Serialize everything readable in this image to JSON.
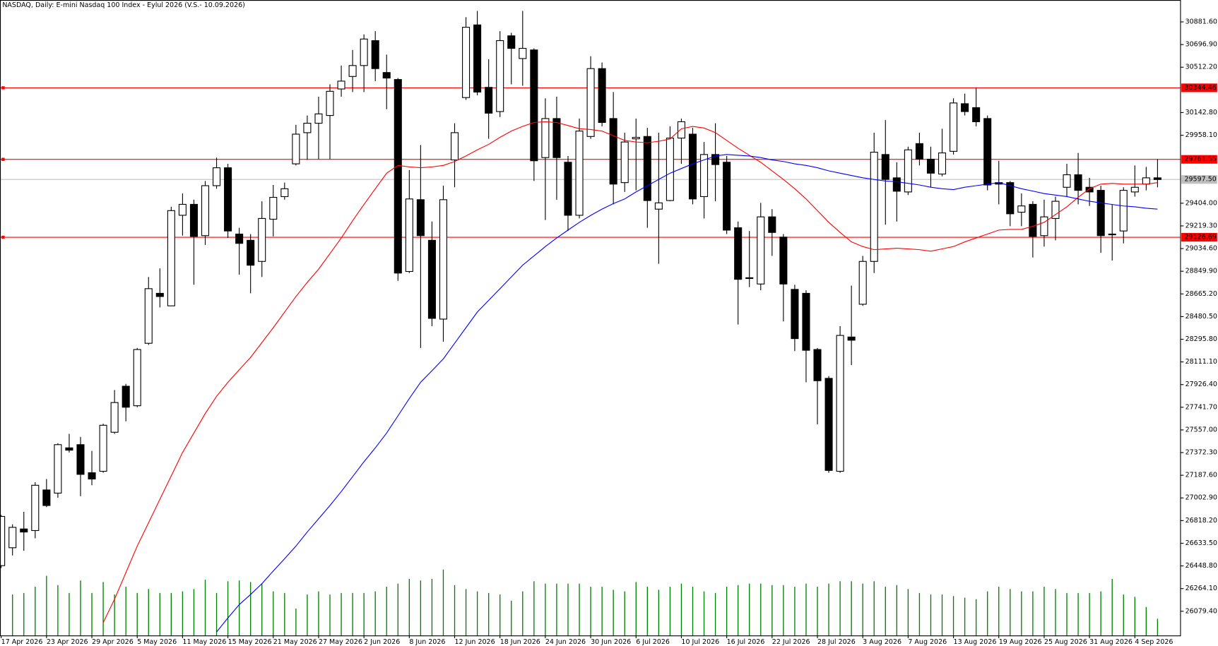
{
  "chart_data": {
    "type": "candlestick",
    "title": "NASDAQ, Daily:  E-mini Nasdaq 100 Index - Eylul 2026 (V.S.- 10.09.2026)",
    "categories": [
      "17 Apr 2026",
      null,
      null,
      null,
      "23 Apr 2026",
      null,
      null,
      null,
      "29 Apr 2026",
      null,
      null,
      null,
      "5 May 2026",
      null,
      null,
      null,
      "11 May 2026",
      null,
      null,
      null,
      "15 May 2026",
      null,
      null,
      null,
      "21 May 2026",
      null,
      null,
      null,
      "27 May 2026",
      null,
      null,
      null,
      "2 Jun 2026",
      null,
      null,
      null,
      "8 Jun 2026",
      null,
      null,
      null,
      "12 Jun 2026",
      null,
      null,
      null,
      "18 Jun 2026",
      null,
      null,
      null,
      "24 Jun 2026",
      null,
      null,
      null,
      "30 Jun 2026",
      null,
      null,
      null,
      "6 Jul 2026",
      null,
      null,
      null,
      "10 Jul 2026",
      null,
      null,
      null,
      "16 Jul 2026",
      null,
      null,
      null,
      "22 Jul 2026",
      null,
      null,
      null,
      "28 Jul 2026",
      null,
      null,
      null,
      "3 Aug 2026",
      null,
      null,
      null,
      "7 Aug 2026",
      null,
      null,
      null,
      "13 Aug 2026",
      null,
      null,
      null,
      "19 Aug 2026",
      null,
      null,
      null,
      "25 Aug 2026",
      null,
      null,
      null,
      "31 Aug 2026",
      null,
      null,
      null,
      "4 Sep 2026",
      null,
      null
    ],
    "open": [
      26451,
      26597,
      26750,
      26737,
      27068,
      27042,
      27411,
      27437,
      27208,
      27220,
      27538,
      27913,
      27754,
      28263,
      28670,
      28568,
      29306,
      29395,
      29140,
      29547,
      29693,
      29153,
      29102,
      28930,
      29274,
      29458,
      29725,
      29979,
      30056,
      30119,
      30335,
      30437,
      30526,
      30729,
      30469,
      30412,
      28848,
      29433,
      29102,
      28460,
      29757,
      30265,
      30857,
      30348,
      30151,
      30768,
      30583,
      30653,
      29776,
      30094,
      29738,
      29306,
      29948,
      30501,
      30094,
      29572,
      29929,
      29948,
      29356,
      29426,
      29935,
      29967,
      29458,
      29801,
      29738,
      29204,
      28797,
      28746,
      29293,
      29128,
      28702,
      28670,
      28212,
      27977,
      27220,
      28314,
      28581,
      28930,
      29801,
      29611,
      29496,
      29890,
      29763,
      29642,
      29827,
      30215,
      30183,
      30094,
      29572,
      29572,
      29331,
      29395,
      29140,
      29280,
      29534,
      29636,
      29534,
      29509,
      29153,
      29178,
      29496,
      29560,
      29611
    ],
    "high": [
      26864,
      26788,
      26890,
      27131,
      27157,
      27449,
      27525,
      27500,
      27386,
      27608,
      27882,
      27932,
      28225,
      28803,
      28873,
      29375,
      29484,
      29433,
      29585,
      29776,
      29725,
      29204,
      29153,
      29420,
      29553,
      29572,
      30043,
      30119,
      30272,
      30373,
      30526,
      30653,
      30780,
      30806,
      30615,
      30424,
      29674,
      29878,
      29255,
      29547,
      30056,
      30920,
      30971,
      30577,
      30806,
      30793,
      30971,
      30666,
      30259,
      30272,
      29789,
      30094,
      30602,
      30551,
      30310,
      29979,
      30094,
      30018,
      29979,
      30030,
      30094,
      30018,
      29903,
      30056,
      29789,
      29255,
      29178,
      29407,
      29356,
      29153,
      28740,
      28695,
      28225,
      27996,
      28403,
      28733,
      28975,
      29979,
      30081,
      29738,
      29865,
      29979,
      29865,
      30011,
      30259,
      30297,
      30348,
      30119,
      29750,
      29585,
      29484,
      29420,
      29433,
      29458,
      29725,
      29814,
      29611,
      29547,
      29395,
      29534,
      29712,
      29700,
      29763
    ],
    "low": [
      26432,
      26534,
      26572,
      26674,
      26928,
      27004,
      27373,
      27017,
      27106,
      27208,
      27525,
      27627,
      27742,
      28250,
      28555,
      28568,
      29140,
      28740,
      29064,
      29522,
      29121,
      28822,
      28670,
      28803,
      29134,
      29433,
      29712,
      29757,
      29763,
      29763,
      30272,
      30310,
      30310,
      30399,
      30170,
      28772,
      28835,
      28225,
      28403,
      28276,
      29534,
      30246,
      30284,
      29929,
      30106,
      30373,
      30361,
      29585,
      29267,
      29433,
      29178,
      29280,
      29929,
      30030,
      29395,
      29496,
      29509,
      29204,
      28911,
      29420,
      29725,
      29395,
      29280,
      29420,
      29153,
      28416,
      28721,
      28695,
      28975,
      28441,
      28199,
      27945,
      27602,
      27208,
      27208,
      28085,
      28568,
      28835,
      29229,
      29255,
      29471,
      29712,
      29534,
      29623,
      29801,
      30119,
      30030,
      29509,
      29395,
      29217,
      29217,
      28962,
      29051,
      29102,
      29458,
      29395,
      29382,
      29000,
      28937,
      29077,
      29458,
      29509,
      29534
    ],
    "close": [
      26852,
      26763,
      26725,
      27106,
      26941,
      27437,
      27392,
      27195,
      27157,
      27595,
      27780,
      27742,
      28212,
      28708,
      28644,
      29344,
      29395,
      29134,
      29547,
      29693,
      29178,
      29077,
      28899,
      29280,
      29452,
      29522,
      29967,
      30056,
      30132,
      30316,
      30399,
      30526,
      30742,
      30501,
      30424,
      28835,
      29439,
      29140,
      28466,
      29433,
      29979,
      30838,
      30310,
      30138,
      30729,
      30666,
      30666,
      29750,
      30094,
      29776,
      29306,
      29992,
      30501,
      30062,
      29560,
      29903,
      29941,
      29426,
      29407,
      29935,
      30068,
      29439,
      29801,
      29719,
      29185,
      28784,
      28791,
      29293,
      29166,
      28746,
      28301,
      28206,
      27958,
      27227,
      28327,
      28288,
      28930,
      29820,
      29598,
      29502,
      29839,
      29763,
      29649,
      29814,
      30221,
      30151,
      30068,
      29553,
      29560,
      29318,
      29382,
      29134,
      29293,
      29420,
      29636,
      29509,
      29496,
      29140,
      29147,
      29509,
      29534,
      29611,
      29597.5
    ],
    "volumes": [
      null,
      53,
      55,
      63,
      77,
      65,
      55,
      71,
      55,
      69,
      53,
      63,
      55,
      60,
      55,
      55,
      57,
      60,
      72,
      55,
      70,
      71,
      69,
      67,
      57,
      55,
      35,
      53,
      57,
      53,
      55,
      55,
      55,
      57,
      63,
      67,
      73,
      71,
      73,
      85,
      65,
      60,
      57,
      55,
      53,
      45,
      57,
      70,
      67,
      67,
      67,
      67,
      63,
      63,
      59,
      57,
      69,
      63,
      59,
      63,
      67,
      63,
      57,
      55,
      63,
      65,
      67,
      67,
      65,
      65,
      63,
      67,
      63,
      67,
      70,
      70,
      67,
      70,
      63,
      65,
      60,
      55,
      53,
      53,
      51,
      49,
      47,
      57,
      63,
      60,
      57,
      57,
      63,
      60,
      55,
      55,
      55,
      57,
      73,
      53,
      50,
      37,
      22
    ],
    "volume_lim": [
      0,
      120
    ],
    "volume_color": "#008000",
    "moving_averages": [
      {
        "color": "#ff0000",
        "values": [
          null,
          null,
          null,
          null,
          null,
          null,
          null,
          null,
          null,
          25987,
          26178,
          26394,
          26610,
          26801,
          26992,
          27182,
          27373,
          27532,
          27691,
          27831,
          27945,
          28047,
          28148,
          28269,
          28390,
          28517,
          28644,
          28759,
          28867,
          28994,
          29121,
          29261,
          29394,
          29522,
          29649,
          29712,
          29700,
          29693,
          29700,
          29712,
          29744,
          29789,
          29839,
          29884,
          29941,
          29992,
          30030,
          30062,
          30068,
          30062,
          30037,
          30011,
          30005,
          29992,
          29954,
          29916,
          29903,
          29897,
          29909,
          29928,
          30011,
          30030,
          30017,
          29979,
          29916,
          29852,
          29795,
          29738,
          29668,
          29598,
          29522,
          29439,
          29344,
          29248,
          29166,
          29089,
          29051,
          29026,
          29032,
          29038,
          29032,
          29026,
          29013,
          29032,
          29051,
          29089,
          29121,
          29153,
          29185,
          29191,
          29191,
          29216,
          29248,
          29312,
          29375,
          29452,
          29522,
          29560,
          29566,
          29560,
          29560,
          29560,
          29572
        ]
      },
      {
        "color": "#0000ff",
        "values": [
          null,
          null,
          null,
          null,
          null,
          null,
          null,
          null,
          null,
          null,
          null,
          null,
          null,
          null,
          null,
          null,
          null,
          null,
          null,
          25911,
          26025,
          26133,
          26216,
          26305,
          26407,
          26508,
          26610,
          26725,
          26833,
          26941,
          27055,
          27176,
          27297,
          27411,
          27532,
          27672,
          27812,
          27945,
          28040,
          28136,
          28263,
          28390,
          28517,
          28613,
          28708,
          28803,
          28899,
          28975,
          29051,
          29121,
          29185,
          29248,
          29305,
          29356,
          29401,
          29439,
          29496,
          29547,
          29598,
          29649,
          29687,
          29725,
          29757,
          29789,
          29801,
          29795,
          29789,
          29776,
          29757,
          29744,
          29725,
          29712,
          29693,
          29668,
          29649,
          29630,
          29611,
          29598,
          29585,
          29579,
          29566,
          29553,
          29534,
          29522,
          29515,
          29534,
          29547,
          29560,
          29572,
          29547,
          29522,
          29503,
          29483,
          29471,
          29458,
          29439,
          29420,
          29407,
          29394,
          29382,
          29375,
          29363,
          29356
        ]
      }
    ],
    "levels": [
      {
        "value": 30344.46,
        "label": "30344.46",
        "color": "#ff0000"
      },
      {
        "value": 29761.55,
        "label": "29761.55",
        "color": "#ff0000"
      },
      {
        "value": 29126.69,
        "label": "29126.69",
        "color": "#ff0000"
      }
    ],
    "bid": {
      "value": 29597.5,
      "label": "29597.50",
      "color": "#c0c0c0"
    },
    "ylim": [
      25879,
      31060
    ],
    "yticks": [
      {
        "value": 30881.6,
        "label": "30881.60"
      },
      {
        "value": 30696.9,
        "label": "30696.90"
      },
      {
        "value": 30512.2,
        "label": "30512.20"
      },
      {
        "value": 30142.8,
        "label": "30142.80"
      },
      {
        "value": 29958.1,
        "label": "29958.10"
      },
      {
        "value": 29404,
        "label": "29404.00"
      },
      {
        "value": 29219.3,
        "label": "29219.30"
      },
      {
        "value": 29034.6,
        "label": "29034.60"
      },
      {
        "value": 28849.9,
        "label": "28849.90"
      },
      {
        "value": 28665.2,
        "label": "28665.20"
      },
      {
        "value": 28480.5,
        "label": "28480.50"
      },
      {
        "value": 28295.8,
        "label": "28295.80"
      },
      {
        "value": 28111.1,
        "label": "28111.10"
      },
      {
        "value": 27926.4,
        "label": "27926.40"
      },
      {
        "value": 27741.7,
        "label": "27741.70"
      },
      {
        "value": 27557,
        "label": "27557.00"
      },
      {
        "value": 27372.3,
        "label": "27372.30"
      },
      {
        "value": 27187.6,
        "label": "27187.60"
      },
      {
        "value": 27002.9,
        "label": "27002.90"
      },
      {
        "value": 26818.2,
        "label": "26818.20"
      },
      {
        "value": 26633.5,
        "label": "26633.50"
      },
      {
        "value": 26448.8,
        "label": "26448.80"
      },
      {
        "value": 26264.1,
        "label": "26264.10"
      },
      {
        "value": 26079.4,
        "label": "26079.40"
      }
    ],
    "up_color": "#ffffff",
    "down_color": "#000000"
  }
}
